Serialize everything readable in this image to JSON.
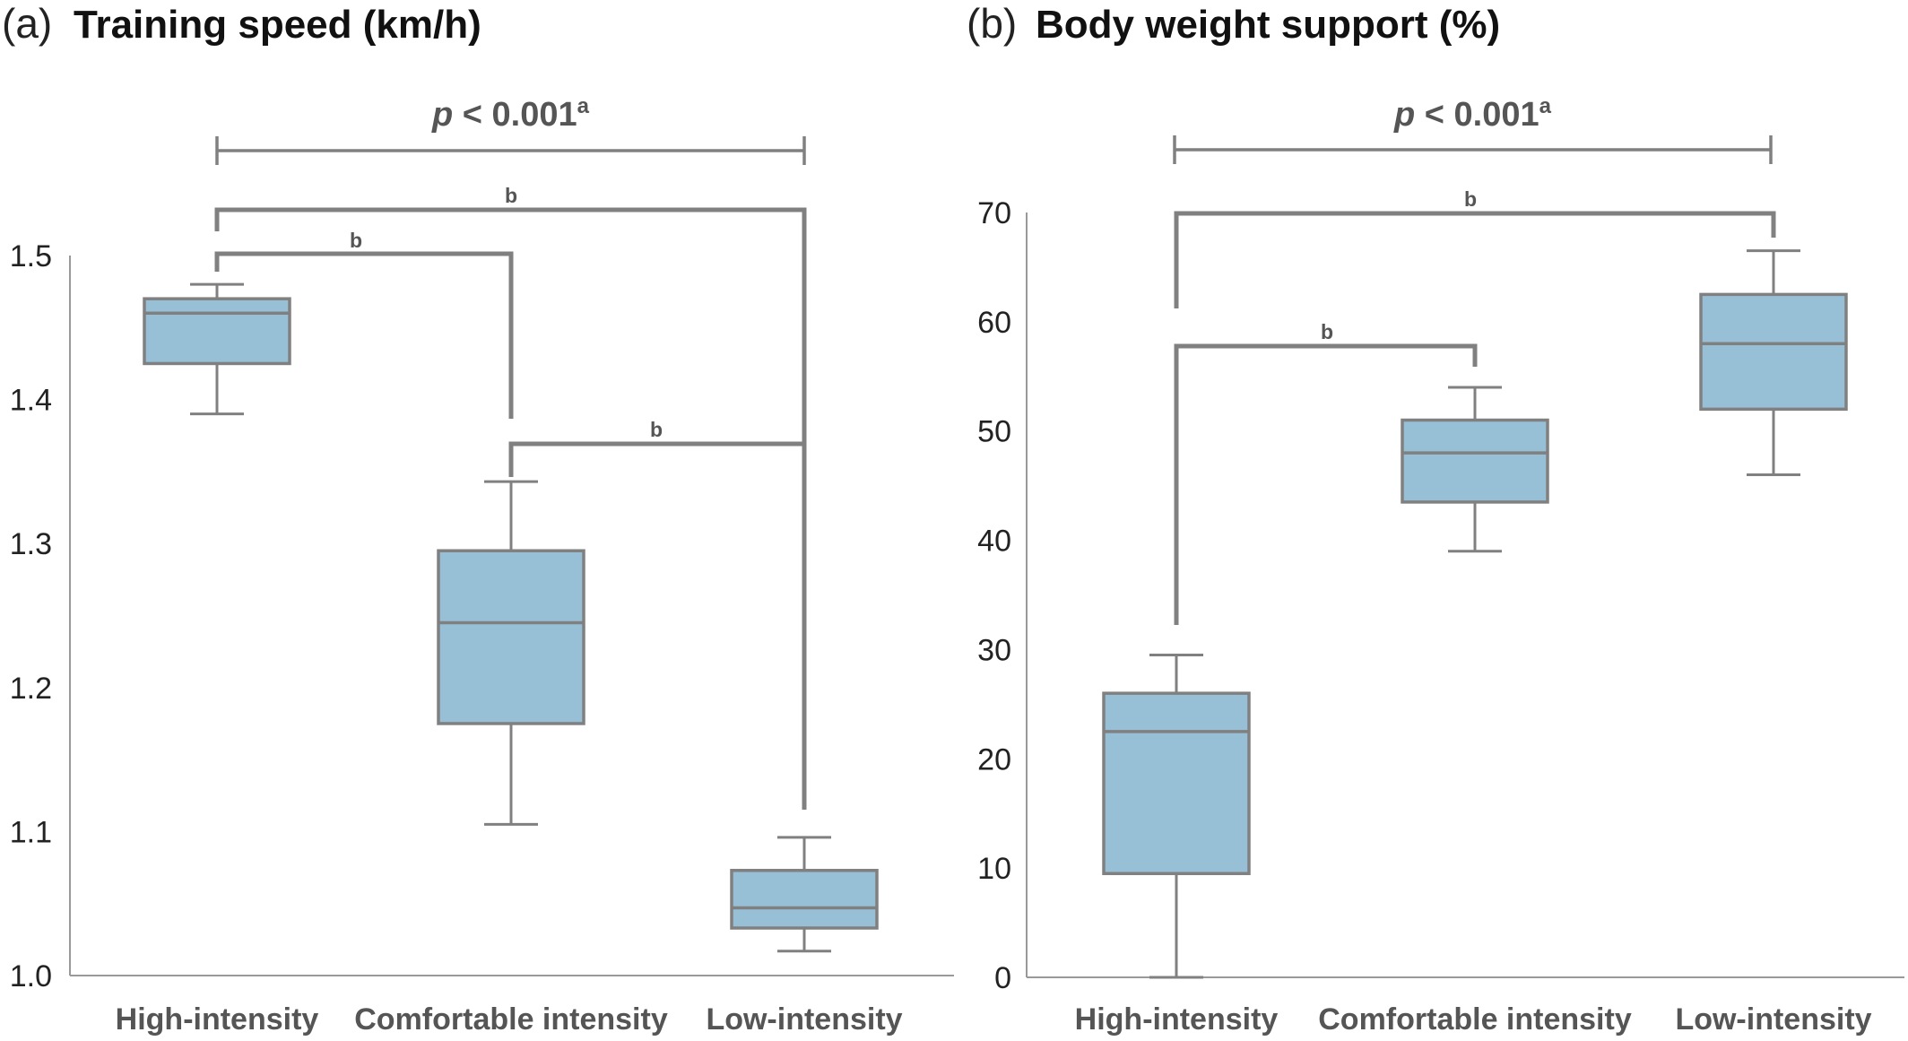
{
  "chart_data": [
    {
      "type": "box",
      "panel_letter": "(a)",
      "title": "Training speed (km/h)",
      "categories": [
        "High-intensity",
        "Comfortable intensity",
        "Low-intensity"
      ],
      "ylim": [
        1.0,
        1.5
      ],
      "yticks": [
        1.0,
        1.1,
        1.2,
        1.3,
        1.4,
        1.5
      ],
      "box_color": "#97c0d6",
      "stroke_color": "#808080",
      "boxes": [
        {
          "category": "High-intensity",
          "min": 1.39,
          "q1": 1.425,
          "median": 1.46,
          "q3": 1.47,
          "max": 1.48
        },
        {
          "category": "Comfortable intensity",
          "min": 1.105,
          "q1": 1.175,
          "median": 1.245,
          "q3": 1.295,
          "max": 1.343
        },
        {
          "category": "Low-intensity",
          "min": 1.017,
          "q1": 1.033,
          "median": 1.047,
          "q3": 1.073,
          "max": 1.096
        }
      ],
      "overall_test": {
        "text": "p < 0.001",
        "p_italic": "p",
        "rest": " < 0.001",
        "superscript": "a"
      },
      "pairwise": [
        {
          "from": 0,
          "to": 1,
          "label": "b"
        },
        {
          "from": 0,
          "to": 2,
          "label": "b"
        },
        {
          "from": 1,
          "to": 2,
          "label": "b"
        }
      ]
    },
    {
      "type": "box",
      "panel_letter": "(b)",
      "title": "Body weight support (%)",
      "categories": [
        "High-intensity",
        "Comfortable intensity",
        "Low-intensity"
      ],
      "ylim": [
        0,
        70
      ],
      "yticks": [
        0,
        10,
        20,
        30,
        40,
        50,
        60,
        70
      ],
      "box_color": "#97c0d6",
      "stroke_color": "#808080",
      "boxes": [
        {
          "category": "High-intensity",
          "min": 0,
          "q1": 9.5,
          "median": 22.5,
          "q3": 26,
          "max": 29.5
        },
        {
          "category": "Comfortable intensity",
          "min": 39,
          "q1": 43.5,
          "median": 48,
          "q3": 51,
          "max": 54
        },
        {
          "category": "Low-intensity",
          "min": 46,
          "q1": 52,
          "median": 58,
          "q3": 62.5,
          "max": 66.5
        }
      ],
      "overall_test": {
        "text": "p < 0.001",
        "p_italic": "p",
        "rest": " < 0.001",
        "superscript": "a"
      },
      "pairwise": [
        {
          "from": 0,
          "to": 2,
          "label": "b"
        },
        {
          "from": 0,
          "to": 1,
          "label": "b"
        }
      ]
    }
  ]
}
